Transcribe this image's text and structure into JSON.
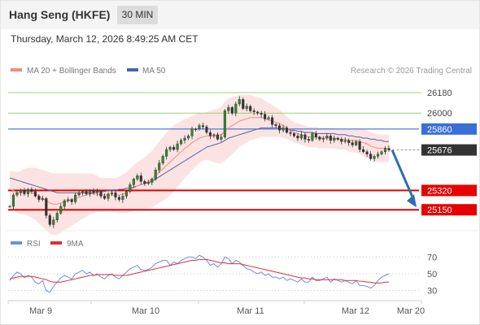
{
  "header": {
    "title": "Hang Seng (HKFE)",
    "timeframe": "30 MIN",
    "date": "Thursday, March 12, 2026 8:49:25 AM CET"
  },
  "legend": {
    "ma20_label": "MA 20 + Bollinger Bands",
    "ma50_label": "MA 50",
    "credit": "Research © 2026 Trading Central"
  },
  "colors": {
    "candle": "#2b8a2b",
    "wick": "#333333",
    "ma20": "#f28b82",
    "band": "#fbd9d9",
    "ma50": "#4a66a8",
    "resistance": "#9fd07a",
    "pivot": "#3a6fd8",
    "support": "#e60000",
    "last_price": "#333333",
    "arrow": "#2f6db5",
    "rsi": "#6b8ee8",
    "rsi_ma": "#e03030"
  },
  "chart_data": [
    {
      "type": "candlestick",
      "ylim": [
        24980,
        26280
      ],
      "x_ticks": [
        "Mar 9",
        "Mar 10",
        "Mar 11",
        "Mar 12",
        "Mar 20"
      ],
      "levels": [
        {
          "name": "resistance-2",
          "value": 26180,
          "label": "26180",
          "style": "resistance"
        },
        {
          "name": "resistance-1",
          "value": 26000,
          "label": "26000",
          "style": "resistance"
        },
        {
          "name": "pivot",
          "value": 25860,
          "label": "25860",
          "style": "pivot"
        },
        {
          "name": "last-price",
          "value": 25676,
          "label": "25676",
          "style": "last"
        },
        {
          "name": "support-1",
          "value": 25320,
          "label": "25320",
          "style": "support"
        },
        {
          "name": "support-2",
          "value": 25150,
          "label": "25150",
          "style": "support"
        }
      ],
      "forecast_arrow": {
        "from": 25676,
        "to": 25150
      },
      "closes": [
        25180,
        25280,
        25300,
        25320,
        25290,
        25330,
        25310,
        25270,
        25240,
        25250,
        25100,
        25020,
        25060,
        25120,
        25180,
        25230,
        25240,
        25220,
        25280,
        25300,
        25310,
        25290,
        25320,
        25300,
        25310,
        25270,
        25250,
        25290,
        25300,
        25260,
        25240,
        25270,
        25310,
        25370,
        25420,
        25450,
        25400,
        25380,
        25390,
        25420,
        25500,
        25560,
        25620,
        25680,
        25700,
        25680,
        25730,
        25760,
        25780,
        25800,
        25860,
        25860,
        25890,
        25880,
        25830,
        25800,
        25810,
        25770,
        25790,
        26020,
        26050,
        26000,
        26080,
        26120,
        26040,
        26060,
        26020,
        26010,
        26000,
        25990,
        25950,
        25960,
        25900,
        25890,
        25850,
        25870,
        25830,
        25820,
        25800,
        25780,
        25810,
        25770,
        25760,
        25820,
        25790,
        25770,
        25780,
        25800,
        25760,
        25780,
        25770,
        25750,
        25760,
        25740,
        25720,
        25750,
        25680,
        25660,
        25640,
        25600,
        25620,
        25640,
        25660,
        25690,
        25676
      ],
      "ma20": [
        25330,
        25320,
        25300,
        25300,
        25310,
        25310,
        25300,
        25290,
        25270,
        25250,
        25230,
        25210,
        25200,
        25200,
        25210,
        25220,
        25230,
        25240,
        25250,
        25260,
        25270,
        25280,
        25290,
        25290,
        25290,
        25280,
        25280,
        25280,
        25280,
        25280,
        25280,
        25290,
        25300,
        25320,
        25340,
        25360,
        25370,
        25380,
        25400,
        25420,
        25450,
        25480,
        25510,
        25540,
        25570,
        25600,
        25630,
        25660,
        25690,
        25710,
        25740,
        25760,
        25780,
        25790,
        25800,
        25800,
        25800,
        25800,
        25810,
        25840,
        25870,
        25890,
        25910,
        25930,
        25940,
        25950,
        25960,
        25960,
        25960,
        25960,
        25950,
        25940,
        25930,
        25920,
        25910,
        25890,
        25870,
        25850,
        25830,
        25820,
        25810,
        25800,
        25790,
        25790,
        25790,
        25780,
        25780,
        25780,
        25780,
        25780,
        25770,
        25770,
        25770,
        25760,
        25760,
        25760,
        25750,
        25740,
        25730,
        25710,
        25700,
        25690,
        25690,
        25690,
        25690
      ],
      "band_width": [
        160,
        170,
        180,
        190,
        200,
        210,
        220,
        230,
        240,
        250,
        260,
        270,
        270,
        270,
        260,
        250,
        240,
        230,
        220,
        210,
        200,
        190,
        180,
        170,
        160,
        150,
        150,
        150,
        150,
        150,
        160,
        170,
        180,
        190,
        200,
        210,
        220,
        230,
        240,
        250,
        260,
        270,
        280,
        290,
        290,
        290,
        280,
        270,
        260,
        250,
        240,
        230,
        220,
        210,
        210,
        220,
        230,
        240,
        250,
        260,
        260,
        250,
        240,
        230,
        220,
        210,
        200,
        190,
        180,
        170,
        160,
        150,
        140,
        130,
        120,
        110,
        100,
        90,
        90,
        90,
        90,
        90,
        90,
        90,
        90,
        90,
        90,
        90,
        90,
        90,
        90,
        90,
        90,
        100,
        100,
        110,
        110,
        120,
        120,
        120,
        120,
        120,
        120,
        120,
        120
      ],
      "ma50": [
        25430,
        25420,
        25410,
        25400,
        25390,
        25380,
        25370,
        25360,
        25350,
        25340,
        25330,
        25320,
        25310,
        25300,
        25300,
        25300,
        25300,
        25300,
        25300,
        25300,
        25300,
        25300,
        25300,
        25300,
        25310,
        25310,
        25310,
        25320,
        25320,
        25320,
        25330,
        25330,
        25340,
        25340,
        25350,
        25360,
        25370,
        25380,
        25390,
        25400,
        25420,
        25440,
        25460,
        25480,
        25500,
        25520,
        25540,
        25560,
        25580,
        25600,
        25620,
        25640,
        25660,
        25680,
        25700,
        25710,
        25720,
        25730,
        25740,
        25760,
        25780,
        25790,
        25800,
        25810,
        25820,
        25830,
        25840,
        25850,
        25860,
        25870,
        25870,
        25870,
        25870,
        25870,
        25870,
        25860,
        25860,
        25850,
        25850,
        25840,
        25840,
        25830,
        25830,
        25830,
        25820,
        25820,
        25820,
        25820,
        25820,
        25820,
        25810,
        25810,
        25810,
        25800,
        25800,
        25790,
        25790,
        25780,
        25780,
        25770,
        25770,
        25760,
        25760,
        25750,
        25750
      ]
    },
    {
      "type": "line",
      "legend": [
        "RSI",
        "9MA"
      ],
      "ylim": [
        20,
        78
      ],
      "y_ticks": [
        70,
        50,
        30
      ],
      "rsi": [
        42,
        48,
        52,
        50,
        45,
        48,
        46,
        40,
        38,
        42,
        30,
        28,
        35,
        40,
        45,
        48,
        46,
        44,
        50,
        52,
        54,
        50,
        52,
        48,
        50,
        46,
        44,
        48,
        50,
        46,
        44,
        48,
        52,
        56,
        58,
        60,
        55,
        54,
        55,
        58,
        62,
        64,
        66,
        66,
        60,
        64,
        62,
        66,
        68,
        70,
        70,
        68,
        72,
        70,
        66,
        60,
        62,
        58,
        62,
        70,
        68,
        62,
        66,
        64,
        60,
        56,
        55,
        52,
        50,
        52,
        48,
        50,
        46,
        46,
        44,
        46,
        42,
        44,
        42,
        40,
        44,
        40,
        40,
        46,
        42,
        42,
        44,
        46,
        40,
        44,
        42,
        40,
        42,
        40,
        38,
        42,
        36,
        36,
        35,
        33,
        36,
        42,
        46,
        48,
        50
      ],
      "rsi_9ma": [
        44,
        45,
        46,
        47,
        47,
        47,
        47,
        46,
        45,
        44,
        43,
        41,
        40,
        40,
        40,
        41,
        42,
        43,
        44,
        45,
        46,
        47,
        48,
        48,
        49,
        49,
        49,
        49,
        49,
        48,
        48,
        48,
        48,
        49,
        50,
        51,
        52,
        53,
        54,
        55,
        56,
        57,
        58,
        59,
        60,
        61,
        62,
        63,
        64,
        65,
        66,
        66,
        67,
        67,
        67,
        66,
        65,
        64,
        63,
        63,
        62,
        62,
        62,
        62,
        61,
        60,
        59,
        58,
        57,
        56,
        55,
        54,
        53,
        52,
        51,
        50,
        49,
        48,
        47,
        46,
        45,
        45,
        44,
        44,
        43,
        43,
        43,
        43,
        43,
        43,
        43,
        43,
        42,
        42,
        42,
        42,
        41,
        41,
        40,
        40,
        39,
        39,
        39,
        40,
        40
      ]
    }
  ]
}
